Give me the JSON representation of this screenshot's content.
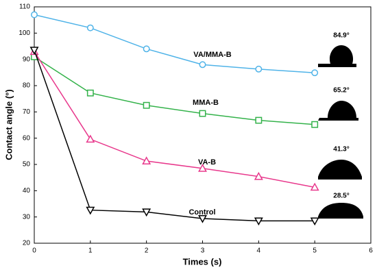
{
  "chart_data": {
    "type": "line",
    "x_label": "Times (s)",
    "y_label": "Contact angle (°)",
    "x": [
      0,
      1,
      2,
      3,
      4,
      5
    ],
    "xlim": [
      0,
      6
    ],
    "xticks": [
      0,
      1,
      2,
      3,
      4,
      5,
      6
    ],
    "ylim": [
      20,
      110
    ],
    "yticks": [
      20,
      30,
      40,
      50,
      60,
      70,
      80,
      90,
      100,
      110
    ],
    "series": [
      {
        "name": "VA/MMA-B",
        "color": "#4fb3e8",
        "marker": "circle",
        "values": [
          107,
          102,
          94,
          88,
          86.3,
          84.9
        ]
      },
      {
        "name": "MMA-B",
        "color": "#33b24a",
        "marker": "square",
        "values": [
          91,
          77.2,
          72.5,
          69.4,
          66.8,
          65.2
        ]
      },
      {
        "name": "VA-B",
        "color": "#e8388c",
        "marker": "triangle-up",
        "values": [
          93,
          59.6,
          51.3,
          48.5,
          45.4,
          41.3
        ]
      },
      {
        "name": "Control",
        "color": "#000000",
        "marker": "triangle-down",
        "values": [
          93.5,
          32.6,
          31.9,
          29.4,
          28.5,
          28.5
        ]
      }
    ],
    "annotations": [
      "84.9°",
      "65.2°",
      "41.3°",
      "28.5°"
    ]
  }
}
